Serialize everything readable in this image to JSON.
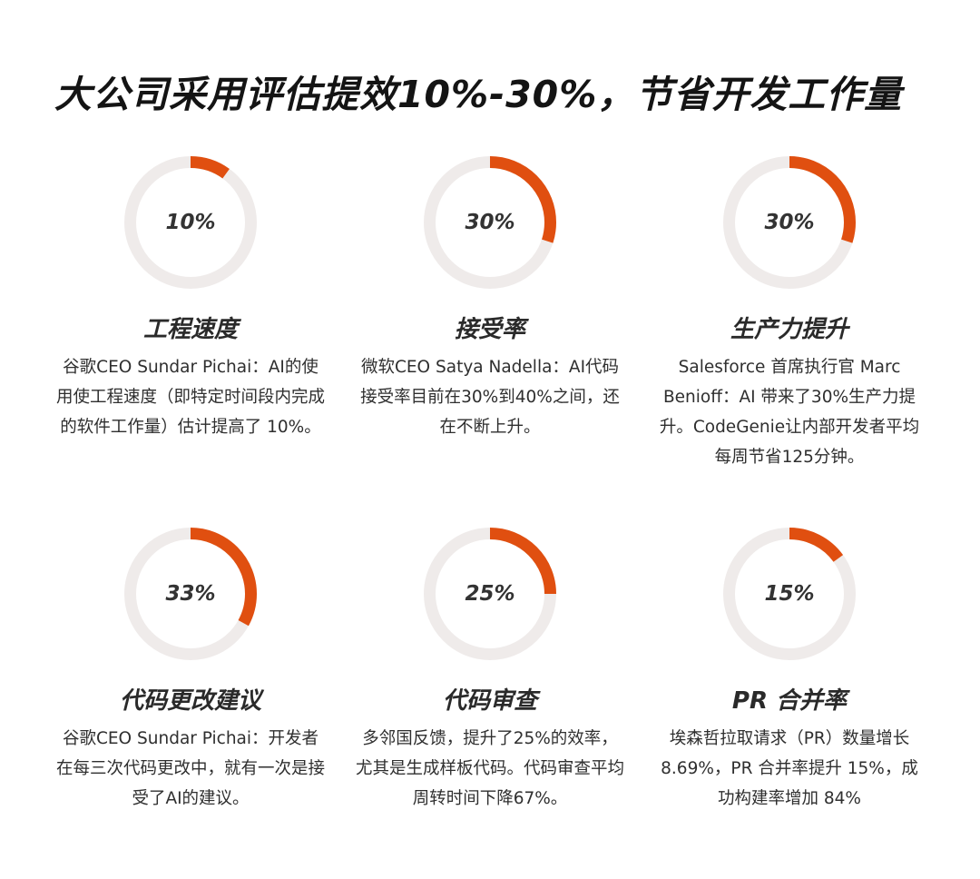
{
  "title": "大公司采用评估提效10%-30%，节省开发工作量",
  "colors": {
    "accent": "#e04f10",
    "track": "#efebea",
    "text": "#2f2f2f"
  },
  "cards": [
    {
      "percent_label": "10%",
      "value": 10,
      "title": "工程速度",
      "desc": "谷歌CEO Sundar Pichai：AI的使用使工程速度（即特定时间段内完成的软件工作量）估计提高了 10%。"
    },
    {
      "percent_label": "30%",
      "value": 30,
      "title": "接受率",
      "desc": "微软CEO Satya Nadella：AI代码接受率目前在30%到40%之间，还在不断上升。"
    },
    {
      "percent_label": "30%",
      "value": 30,
      "title": "生产力提升",
      "desc": "Salesforce 首席执行官 Marc Benioff：AI 带来了30%生产力提升。CodeGenie让内部开发者平均每周节省125分钟。"
    },
    {
      "percent_label": "33%",
      "value": 33,
      "title": "代码更改建议",
      "desc": "谷歌CEO Sundar Pichai：开发者在每三次代码更改中，就有一次是接受了AI的建议。"
    },
    {
      "percent_label": "25%",
      "value": 25,
      "title": "代码审查",
      "desc": "多邻国反馈，提升了25%的效率，尤其是生成样板代码。代码审查平均周转时间下降67%。"
    },
    {
      "percent_label": "15%",
      "value": 15,
      "title": "PR 合并率",
      "desc": "埃森哲拉取请求（PR）数量增长 8.69%，PR 合并率提升 15%，成功构建率增加 84%"
    }
  ]
}
